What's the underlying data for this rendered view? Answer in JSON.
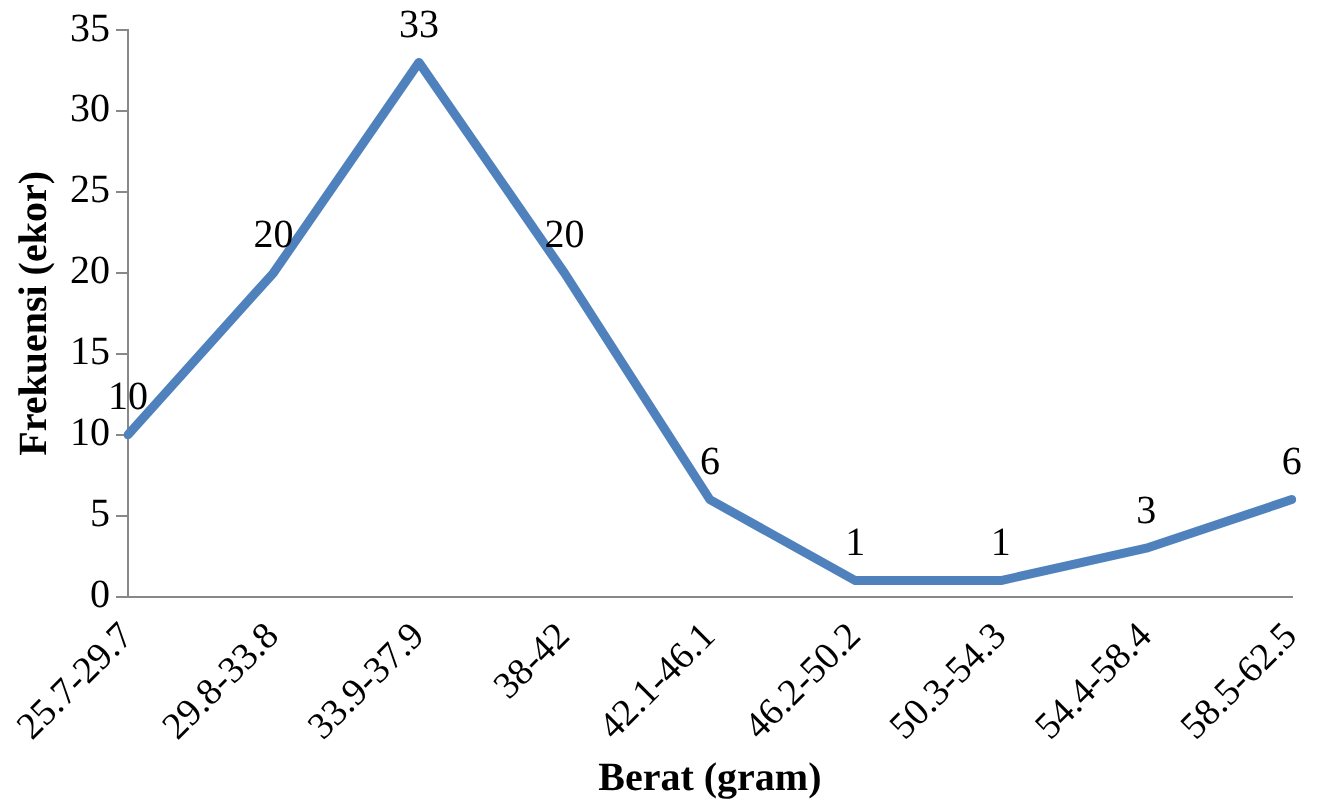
{
  "chart_data": {
    "type": "line",
    "xlabel": "Berat (gram)",
    "ylabel": "Frekuensi (ekor)",
    "categories": [
      "25.7-29.7",
      "29.8-33.8",
      "33.9-37.9",
      "38-42",
      "42.1-46.1",
      "46.2-50.2",
      "50.3-54.3",
      "54.4-58.4",
      "58.5-62.5"
    ],
    "values": [
      10,
      20,
      33,
      20,
      6,
      1,
      1,
      3,
      6
    ],
    "color": "#4f81bd",
    "ylim": [
      0,
      35
    ],
    "yticks": [
      0,
      5,
      10,
      15,
      20,
      25,
      30,
      35
    ],
    "grid": false,
    "legend": false,
    "marker": "none",
    "data_labels": true
  }
}
